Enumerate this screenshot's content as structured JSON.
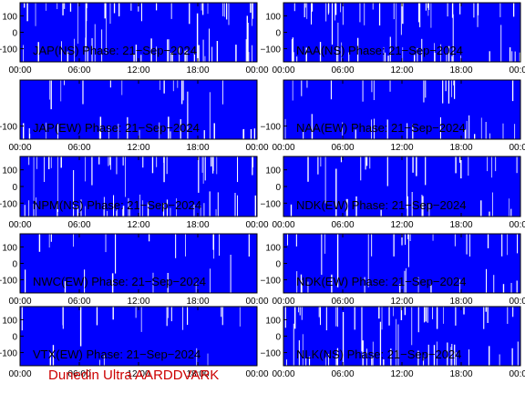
{
  "footer": "Dunedin Ultra AARDDVARK",
  "colors": {
    "plot_fill": "#0000ff",
    "spike": "#ffffff",
    "text": "#000000",
    "footer": "#cc0000"
  },
  "chart_data": [
    {
      "type": "area",
      "title": "JAP(NS) Phase: 21−Sep−2024",
      "x_ticks": [
        "00:00",
        "06:00",
        "12:00",
        "18:00",
        "00:00"
      ],
      "x_unit": "hours UTC",
      "xlim": [
        0,
        24
      ],
      "y_ticks": [
        "100",
        "0",
        "−100"
      ],
      "ylim": [
        -180,
        180
      ],
      "trace_range": [
        -180,
        180
      ],
      "spike_density": "high",
      "grid": false,
      "legend": "none"
    },
    {
      "type": "area",
      "title": "NAA(NS) Phase: 21−Sep−2024",
      "x_ticks": [
        "00:00",
        "06:00",
        "12:00",
        "18:00",
        "00:00"
      ],
      "x_unit": "hours UTC",
      "xlim": [
        0,
        24
      ],
      "y_ticks": [
        "100",
        "0",
        "−100"
      ],
      "ylim": [
        -180,
        180
      ],
      "trace_range": [
        -180,
        180
      ],
      "spike_density": "high",
      "grid": false,
      "legend": "none"
    },
    {
      "type": "area",
      "title": "JAP(EW) Phase: 21−Sep−2024",
      "x_ticks": [
        "00:00",
        "06:00",
        "12:00",
        "18:00",
        "00:00"
      ],
      "x_unit": "hours UTC",
      "xlim": [
        0,
        24
      ],
      "y_ticks": [
        "−100"
      ],
      "ylim": [
        -180,
        180
      ],
      "trace_range": [
        -180,
        180
      ],
      "spike_density": "medium",
      "grid": false,
      "legend": "none"
    },
    {
      "type": "area",
      "title": "NAA(EW) Phase: 21−Sep−2024",
      "x_ticks": [
        "00:00",
        "06:00",
        "12:00",
        "18:00",
        "00:00"
      ],
      "x_unit": "hours UTC",
      "xlim": [
        0,
        24
      ],
      "y_ticks": [
        "−100"
      ],
      "ylim": [
        -180,
        180
      ],
      "trace_range": [
        -180,
        180
      ],
      "spike_density": "medium",
      "grid": false,
      "legend": "none"
    },
    {
      "type": "area",
      "title": "NPM(NS) Phase: 21−Sep−2024",
      "x_ticks": [
        "00:00",
        "06:00",
        "12:00",
        "18:00",
        "00:00"
      ],
      "x_unit": "hours UTC",
      "xlim": [
        0,
        24
      ],
      "y_ticks": [
        "100",
        "0",
        "−100"
      ],
      "ylim": [
        -180,
        180
      ],
      "trace_range": [
        -180,
        180
      ],
      "spike_density": "high",
      "grid": false,
      "legend": "none"
    },
    {
      "type": "area",
      "title": "NDK(EW) Phase: 21−Sep−2024",
      "x_ticks": [
        "00:00",
        "06:00",
        "12:00",
        "18:00",
        "00:00"
      ],
      "x_unit": "hours UTC",
      "xlim": [
        0,
        24
      ],
      "y_ticks": [
        "100",
        "0",
        "−100"
      ],
      "ylim": [
        -180,
        180
      ],
      "trace_range": [
        -180,
        180
      ],
      "spike_density": "medium",
      "grid": false,
      "legend": "none"
    },
    {
      "type": "area",
      "title": "NWC(EW) Phase: 21−Sep−2024",
      "x_ticks": [
        "00:00",
        "06:00",
        "12:00",
        "18:00",
        "00:00"
      ],
      "x_unit": "hours UTC",
      "xlim": [
        0,
        24
      ],
      "y_ticks": [
        "100",
        "0",
        "−100"
      ],
      "ylim": [
        -180,
        180
      ],
      "trace_range": [
        -180,
        180
      ],
      "spike_density": "low",
      "grid": false,
      "legend": "none"
    },
    {
      "type": "area",
      "title": "NDK(EW) Phase: 21−Sep−2024",
      "x_ticks": [
        "00:00",
        "06:00",
        "12:00",
        "18:00",
        "00:00"
      ],
      "x_unit": "hours UTC",
      "xlim": [
        0,
        24
      ],
      "y_ticks": [
        "100",
        "0",
        "−100"
      ],
      "ylim": [
        -180,
        180
      ],
      "trace_range": [
        -180,
        180
      ],
      "spike_density": "medium",
      "grid": false,
      "legend": "none"
    },
    {
      "type": "area",
      "title": "VTX(EW) Phase: 21−Sep−2024",
      "x_ticks": [
        "00:00",
        "06:00",
        "12:00",
        "18:00",
        "00:00"
      ],
      "x_unit": "hours UTC",
      "xlim": [
        0,
        24
      ],
      "y_ticks": [
        "100",
        "0",
        "−100"
      ],
      "ylim": [
        -180,
        180
      ],
      "trace_range": [
        -180,
        180
      ],
      "spike_density": "low",
      "grid": false,
      "legend": "none"
    },
    {
      "type": "area",
      "title": "NLK(NS) Phase: 21−Sep−2024",
      "x_ticks": [
        "00:00",
        "06:00",
        "12:00",
        "18:00",
        "00:00"
      ],
      "x_unit": "hours UTC",
      "xlim": [
        0,
        24
      ],
      "y_ticks": [
        "100",
        "0",
        "−100"
      ],
      "ylim": [
        -180,
        180
      ],
      "trace_range": [
        -180,
        180
      ],
      "spike_density": "high",
      "grid": false,
      "legend": "none"
    }
  ]
}
